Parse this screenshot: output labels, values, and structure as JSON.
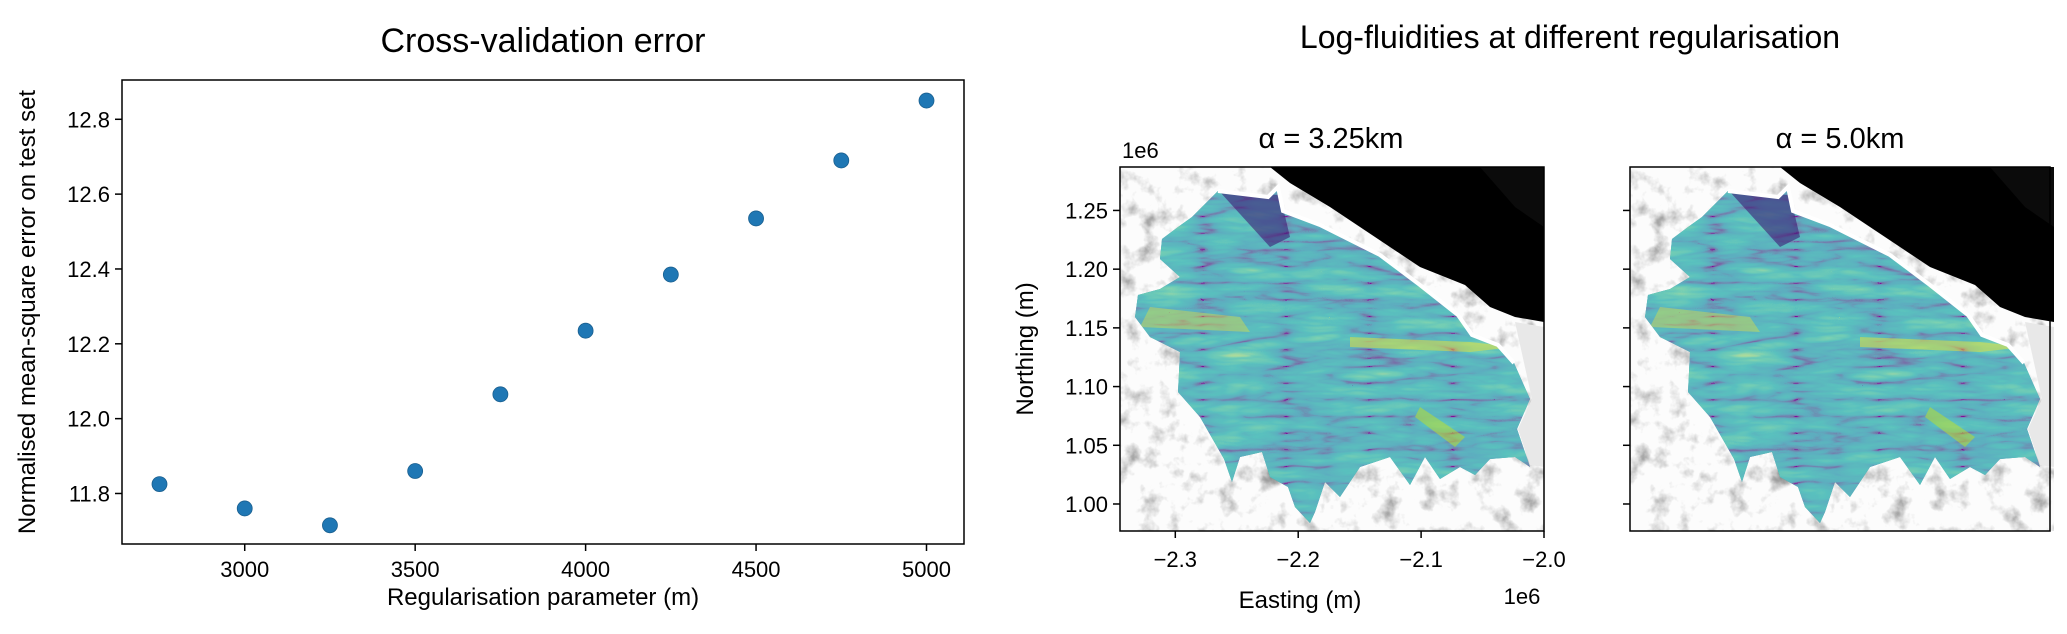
{
  "chart_data": [
    {
      "type": "scatter",
      "title": "Cross-validation error",
      "xlabel": "Regularisation parameter (m)",
      "ylabel": "Normalised mean-square error on test set",
      "x": [
        2750,
        3000,
        3250,
        3500,
        3750,
        4000,
        4250,
        4500,
        4750,
        5000
      ],
      "y": [
        11.825,
        11.76,
        11.715,
        11.86,
        12.065,
        12.235,
        12.385,
        12.535,
        12.69,
        12.85
      ],
      "xlim": [
        2640,
        5110
      ],
      "ylim": [
        11.665,
        12.905
      ],
      "x_ticks": [
        3000,
        3500,
        4000,
        4500,
        5000
      ],
      "x_tick_labels": [
        "3000",
        "3500",
        "4000",
        "4500",
        "5000"
      ],
      "y_ticks": [
        11.8,
        12.0,
        12.2,
        12.4,
        12.6,
        12.8
      ],
      "y_tick_labels": [
        "11.8",
        "12.0",
        "12.2",
        "12.4",
        "12.6",
        "12.8"
      ],
      "grid": false,
      "marker_color": "#1f77b4"
    },
    {
      "type": "heatmap",
      "suptitle": "Log-fluidities at different regularisation",
      "panels": [
        {
          "title": "α = 3.25km",
          "xlabel": "Easting (m)",
          "ylabel": "Northing (m)",
          "xlim": [
            -2.345,
            -2.0
          ],
          "ylim": [
            0.977,
            1.287
          ],
          "x_ticks": [
            -2.3,
            -2.2,
            -2.1,
            -2.0
          ],
          "x_tick_labels": [
            "−2.3",
            "−2.2",
            "−2.1",
            "−2.0"
          ],
          "x_offset_label": "1e6",
          "y_ticks": [
            1.0,
            1.05,
            1.1,
            1.15,
            1.2,
            1.25
          ],
          "y_tick_labels": [
            "1.00",
            "1.05",
            "1.10",
            "1.15",
            "1.20",
            "1.25"
          ],
          "y_offset_label": "1e6"
        },
        {
          "title": "α = 5.0km",
          "y_ticks": [
            1.0,
            1.05,
            1.1,
            1.15,
            1.2,
            1.25
          ]
        }
      ],
      "colormap": "viridis",
      "background": "grayscale hillshade"
    }
  ]
}
